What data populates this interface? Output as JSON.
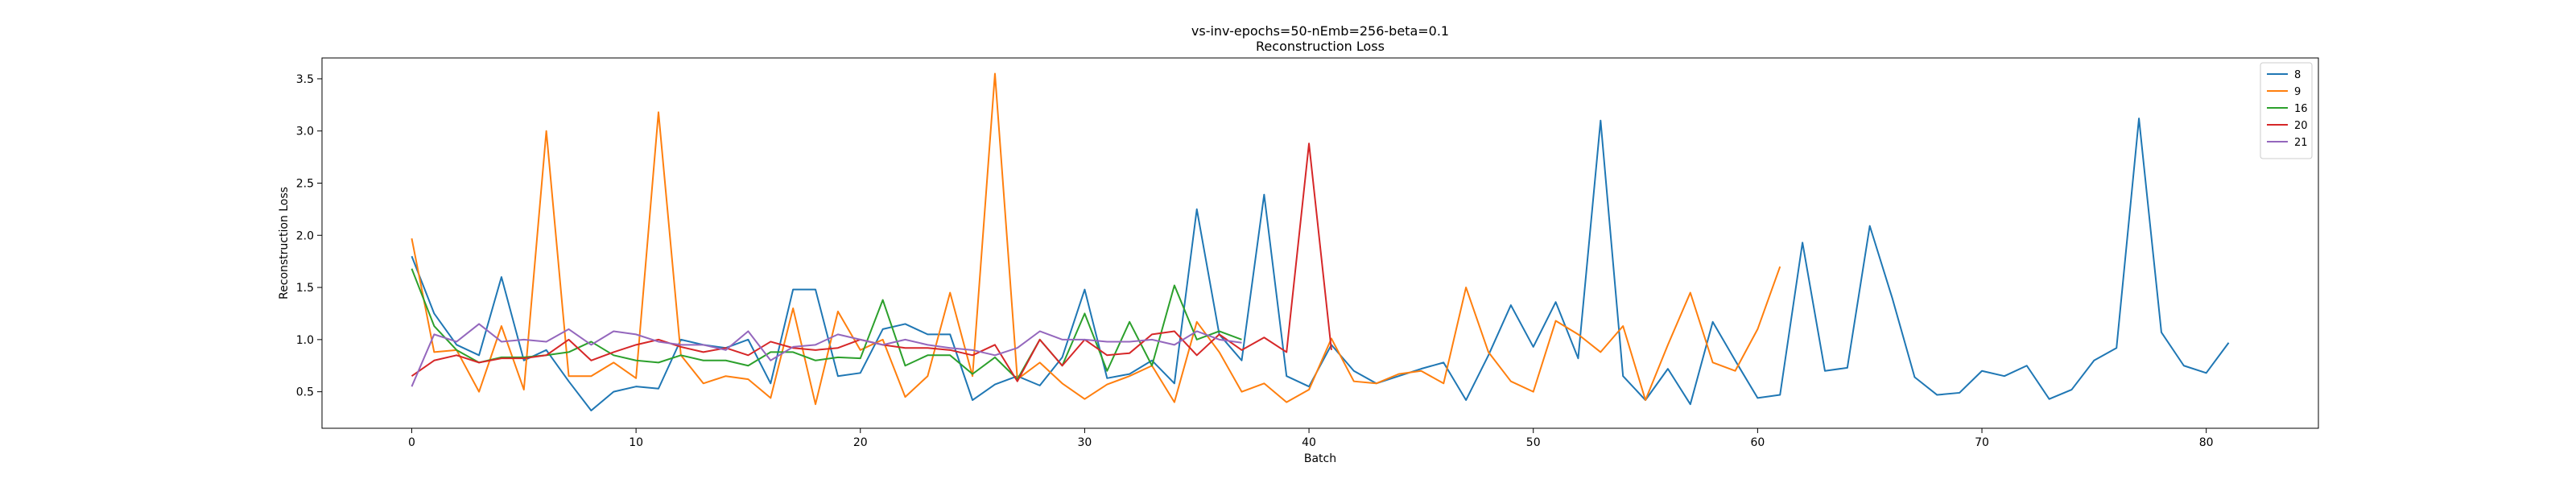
{
  "chart_data": {
    "type": "line",
    "title": "vs-inv-epochs=50-nEmb=256-beta=0.1",
    "subtitle": "Reconstruction Loss",
    "xlabel": "Batch",
    "ylabel": "Reconstruction Loss",
    "xlim": [
      -4,
      85
    ],
    "ylim": [
      0.15,
      3.7
    ],
    "xticks": [
      0,
      10,
      20,
      30,
      40,
      50,
      60,
      70,
      80
    ],
    "yticks": [
      0.5,
      1.0,
      1.5,
      2.0,
      2.5,
      3.0,
      3.5
    ],
    "grid": false,
    "legend_position": "top-right",
    "series": [
      {
        "name": "8",
        "color": "#1f77b4",
        "values": [
          1.8,
          1.25,
          0.95,
          0.85,
          1.6,
          0.8,
          0.9,
          0.6,
          0.32,
          0.5,
          0.55,
          0.53,
          1.0,
          0.95,
          0.92,
          1.0,
          0.58,
          1.48,
          1.48,
          0.65,
          0.68,
          1.1,
          1.15,
          1.05,
          1.05,
          0.42,
          0.57,
          0.65,
          0.56,
          0.83,
          1.48,
          0.63,
          0.67,
          0.8,
          0.58,
          2.25,
          1.05,
          0.8,
          2.39,
          0.65,
          0.55,
          0.95,
          0.7,
          0.58,
          0.65,
          0.72,
          0.78,
          0.42,
          0.85,
          1.33,
          0.93,
          1.36,
          0.82,
          3.1,
          0.65,
          0.42,
          0.72,
          0.38,
          1.17,
          0.8,
          0.44,
          0.47,
          1.93,
          0.7,
          0.73,
          2.09,
          1.4,
          0.64,
          0.47,
          0.49,
          0.7,
          0.65,
          0.75,
          0.43,
          0.52,
          0.8,
          0.92,
          3.12,
          1.07,
          0.75,
          0.68,
          0.97
        ]
      },
      {
        "name": "9",
        "color": "#ff7f0e",
        "values": [
          1.97,
          0.88,
          0.9,
          0.5,
          1.13,
          0.52,
          3.0,
          0.65,
          0.65,
          0.78,
          0.63,
          3.18,
          0.85,
          0.58,
          0.65,
          0.62,
          0.44,
          1.3,
          0.38,
          1.27,
          0.9,
          1.0,
          0.45,
          0.65,
          1.45,
          0.65,
          3.55,
          0.62,
          0.78,
          0.58,
          0.43,
          0.57,
          0.65,
          0.75,
          0.4,
          1.17,
          0.88,
          0.5,
          0.58,
          0.4,
          0.52,
          1.01,
          0.6,
          0.58,
          0.67,
          0.7,
          0.58,
          1.5,
          0.88,
          0.6,
          0.5,
          1.18,
          1.05,
          0.88,
          1.13,
          0.42,
          0.95,
          1.45,
          0.78,
          0.7,
          1.1,
          1.7
        ]
      },
      {
        "name": "16",
        "color": "#2ca02c",
        "values": [
          1.68,
          1.13,
          0.9,
          0.78,
          0.83,
          0.83,
          0.85,
          0.88,
          0.98,
          0.85,
          0.8,
          0.78,
          0.85,
          0.8,
          0.8,
          0.75,
          0.88,
          0.88,
          0.8,
          0.83,
          0.82,
          1.38,
          0.75,
          0.85,
          0.85,
          0.67,
          0.83,
          0.62,
          1.0,
          0.75,
          1.25,
          0.7,
          1.17,
          0.75,
          1.52,
          1.0,
          1.08,
          1.0
        ]
      },
      {
        "name": "20",
        "color": "#d62728",
        "values": [
          0.65,
          0.8,
          0.85,
          0.78,
          0.82,
          0.82,
          0.85,
          1.0,
          0.8,
          0.88,
          0.95,
          1.0,
          0.93,
          0.88,
          0.92,
          0.85,
          0.98,
          0.92,
          0.9,
          0.92,
          1.0,
          0.95,
          0.92,
          0.92,
          0.9,
          0.85,
          0.95,
          0.6,
          1.0,
          0.75,
          1.0,
          0.85,
          0.87,
          1.05,
          1.08,
          0.85,
          1.05,
          0.9,
          1.02,
          0.88,
          2.88,
          0.9
        ]
      },
      {
        "name": "21",
        "color": "#9467bd",
        "values": [
          0.55,
          1.05,
          0.98,
          1.15,
          0.98,
          1.0,
          0.98,
          1.1,
          0.95,
          1.08,
          1.05,
          0.98,
          0.95,
          0.95,
          0.9,
          1.08,
          0.8,
          0.93,
          0.95,
          1.05,
          1.0,
          0.95,
          1.0,
          0.95,
          0.92,
          0.9,
          0.85,
          0.92,
          1.08,
          1.0,
          1.0,
          0.98,
          0.98,
          1.0,
          0.95,
          1.08,
          1.0,
          0.97
        ]
      }
    ]
  }
}
